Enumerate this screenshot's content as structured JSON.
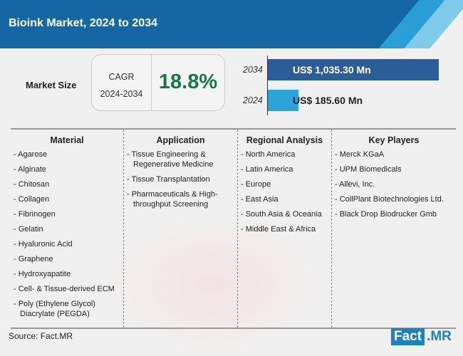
{
  "title": "Bioink Market, 2024 to 2034",
  "market_size": {
    "label": "Market Size",
    "cagr_label": "CAGR",
    "cagr_period": "2024-2034",
    "cagr_value": "18.8%",
    "bars": [
      {
        "year": "2034",
        "value_label": "US$ 1,035.30 Mn",
        "value": 1035.3,
        "color": "#2b5e97"
      },
      {
        "year": "2024",
        "value_label": "US$ 185.60 Mn",
        "value": 185.6,
        "color": "#29a5dc"
      }
    ]
  },
  "columns": [
    {
      "heading": "Material",
      "items": [
        "- Agarose",
        "- Alginate",
        "- Chitosan",
        "- Collagen",
        "- Fibrinogen",
        "- Gelatin",
        "- Hyaluronic Acid",
        "- Graphene",
        "- Hydroxyapatite",
        "- Cell- & Tissue-derived ECM",
        "- Poly (Ethylene Glycol) Diacrylate (PEGDA)"
      ]
    },
    {
      "heading": "Application",
      "items": [
        "- Tissue Engineering & Regenerative Medicine",
        "- Tissue Transplantation",
        "- Pharmaceuticals & High-throughput Screening"
      ]
    },
    {
      "heading": "Regional Analysis",
      "items": [
        "- North America",
        "- Latin America",
        "- Europe",
        "- East Asia",
        "- South Asia & Oceania",
        "- Middle East & Africa"
      ]
    },
    {
      "heading": "Key Players",
      "items": [
        "- Merck KGaA",
        "- UPM Biomedicals",
        "- Allevi, Inc.",
        "- CollPlant Biotechnologies Ltd.",
        "- Black Drop Biodrucker Gmb"
      ]
    }
  ],
  "source": "Source: Fact.MR",
  "logo": {
    "part1": "Fact",
    "part2": ".MR"
  }
}
